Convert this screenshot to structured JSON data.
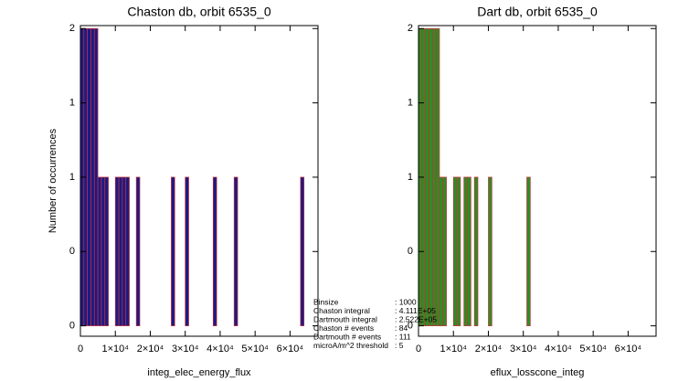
{
  "chart_data": [
    {
      "type": "histogram",
      "title": "Chaston db, orbit 6535_0",
      "xlabel": "integ_elec_energy_flux",
      "ylabel": "Number of occurrences",
      "color": "#1c1a82",
      "edge_color": "#c8303c",
      "bins": [
        0,
        1000,
        2000,
        3000,
        4000,
        5000,
        6000,
        7000,
        8000,
        9000,
        10000,
        11000,
        12000,
        13000,
        14000,
        15000,
        16000,
        17000,
        18000,
        19000,
        20000,
        21000,
        22000,
        23000,
        24000,
        25000,
        26000,
        27000,
        28000,
        29000,
        30000,
        31000,
        32000,
        33000,
        34000,
        35000,
        36000,
        37000,
        38000,
        39000,
        40000,
        41000,
        42000,
        43000,
        44000,
        45000,
        46000,
        47000,
        48000,
        49000,
        50000,
        51000,
        52000,
        53000,
        54000,
        55000,
        56000,
        57000,
        58000,
        59000,
        60000,
        61000,
        62000,
        63000,
        64000,
        65000,
        66000,
        67000,
        68000
      ],
      "values": [
        2,
        2,
        2,
        2,
        2,
        1,
        1,
        1,
        0,
        0,
        1,
        1,
        1,
        1,
        0,
        0,
        1,
        0,
        0,
        0,
        0,
        0,
        0,
        0,
        0,
        0,
        1,
        0,
        0,
        0,
        1,
        0,
        0,
        0,
        0,
        0,
        0,
        0,
        1,
        0,
        0,
        0,
        0,
        0,
        1,
        0,
        0,
        0,
        0,
        0,
        0,
        0,
        0,
        0,
        0,
        0,
        0,
        0,
        0,
        0,
        0,
        0,
        0,
        1,
        0,
        0,
        0,
        0
      ],
      "xlim": [
        0,
        68000
      ],
      "ylim": [
        -0.07,
        2.02
      ],
      "xticks": [
        0,
        {
          "value": 10000,
          "label": "1×10⁴"
        },
        {
          "value": 20000,
          "label": "2×10⁴"
        },
        {
          "value": 30000,
          "label": "3×10⁴"
        },
        {
          "value": 40000,
          "label": "4×10⁴"
        },
        {
          "value": 50000,
          "label": "5×10⁴"
        },
        {
          "value": 60000,
          "label": "6×10⁴"
        }
      ],
      "yticks": [
        0,
        {
          "value": 0.5,
          "label": "0"
        },
        1,
        {
          "value": 1.5,
          "label": "1"
        },
        2
      ]
    },
    {
      "type": "histogram",
      "title": "Dart db, orbit 6535_0",
      "xlabel": "eflux_losscone_integ",
      "color": "#2f8c24",
      "edge_color": "#c8303c",
      "bins": [
        0,
        1000,
        2000,
        3000,
        4000,
        5000,
        6000,
        7000,
        8000,
        9000,
        10000,
        11000,
        12000,
        13000,
        14000,
        15000,
        16000,
        17000,
        18000,
        19000,
        20000,
        21000,
        22000,
        23000,
        24000,
        25000,
        26000,
        27000,
        28000,
        29000,
        30000,
        31000,
        32000,
        33000,
        34000,
        35000,
        36000,
        37000,
        38000,
        39000,
        40000,
        41000,
        42000,
        43000,
        44000,
        45000,
        46000,
        47000,
        48000,
        49000,
        50000,
        51000,
        52000,
        53000,
        54000,
        55000,
        56000,
        57000,
        58000,
        59000,
        60000,
        61000,
        62000,
        63000,
        64000,
        65000,
        66000,
        67000,
        68000
      ],
      "values": [
        2,
        2,
        2,
        2,
        2,
        2,
        1,
        1,
        0,
        0,
        1,
        1,
        0,
        1,
        1,
        0,
        1,
        0,
        0,
        0,
        1,
        0,
        0,
        0,
        0,
        0,
        0,
        0,
        0,
        0,
        0,
        1,
        0,
        0,
        0,
        0,
        0,
        0,
        0,
        0,
        0,
        0,
        0,
        0,
        0,
        0,
        0,
        0,
        0,
        0,
        0,
        0,
        0,
        0,
        0,
        0,
        0,
        0,
        0,
        0,
        0,
        0,
        0,
        0,
        0,
        0,
        0,
        0
      ],
      "xlim": [
        0,
        68000
      ],
      "ylim": [
        -0.07,
        2.02
      ],
      "xticks": [
        0,
        {
          "value": 10000,
          "label": "1×10⁴"
        },
        {
          "value": 20000,
          "label": "2×10⁴"
        },
        {
          "value": 30000,
          "label": "3×10⁴"
        },
        {
          "value": 40000,
          "label": "4×10⁴"
        },
        {
          "value": 50000,
          "label": "5×10⁴"
        },
        {
          "value": 60000,
          "label": "6×10⁴"
        }
      ],
      "yticks": [
        0,
        {
          "value": 0.5,
          "label": "0"
        },
        1,
        {
          "value": 1.5,
          "label": "1"
        },
        2
      ]
    }
  ],
  "stats": [
    {
      "label": "Binsize",
      "value": ": 1000"
    },
    {
      "label": "Chaston integral",
      "value": ": 4.111E+05"
    },
    {
      "label": "Dartmouth integral",
      "value": ": 2.522E+05"
    },
    {
      "label": "Chaston # events",
      "value": ": 84"
    },
    {
      "label": "Dartmouth # events",
      "value": ": 111"
    },
    {
      "label": "microA/m^2 threshold",
      "value": ": 5"
    }
  ]
}
